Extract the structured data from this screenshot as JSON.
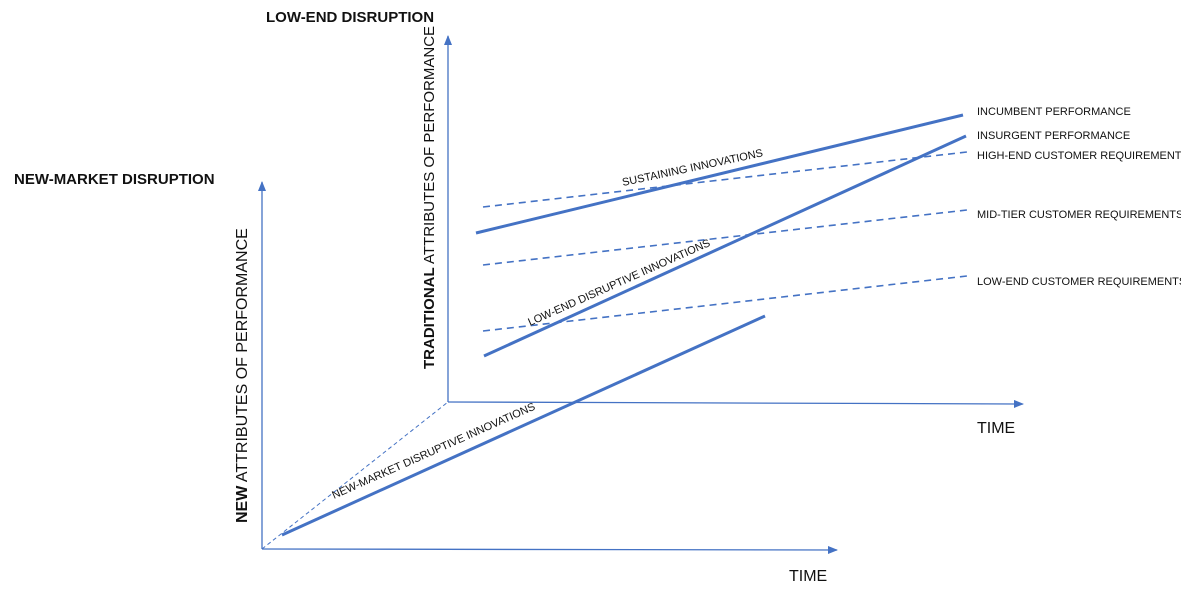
{
  "headings": {
    "low_end": "LOW-END DISRUPTION",
    "new_market": "NEW-MARKET DISRUPTION"
  },
  "axes": {
    "traditional_y_bold": "TRADITIONAL",
    "traditional_y_rest": " ATTRIBUTES OF PERFORMANCE",
    "new_y_bold": "NEW",
    "new_y_rest": " ATTRIBUTES OF PERFORMANCE",
    "time_upper": "TIME",
    "time_lower": "TIME"
  },
  "line_labels": {
    "incumbent": "INCUMBENT PERFORMANCE",
    "insurgent": "INSURGENT PERFORMANCE",
    "high_end": "HIGH-END CUSTOMER REQUIREMENTS",
    "mid_tier": "MID-TIER CUSTOMER REQUIREMENTS",
    "low_end": "LOW-END CUSTOMER REQUIREMENTS"
  },
  "annotations": {
    "sustaining": "SUSTAINING INNOVATIONS",
    "low_end_disruptive": "LOW-END DISRUPTIVE INNOVATIONS",
    "new_market_disruptive": "NEW-MARKET DISRUPTIVE INNOVATIONS"
  },
  "colors": {
    "line": "#4472c4",
    "text": "#111111"
  }
}
